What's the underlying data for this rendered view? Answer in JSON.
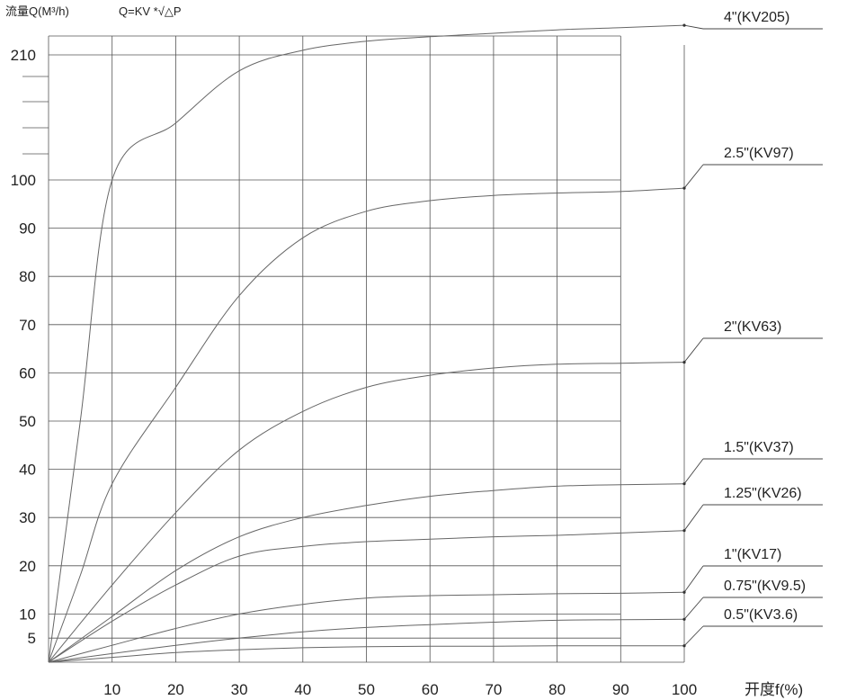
{
  "chart_data": {
    "type": "line",
    "title": "",
    "ylabel": "流量Q(M³/h)",
    "formula": "Q=KV *√△P",
    "xlabel": "开度f(%)",
    "x_ticks": [
      10,
      20,
      30,
      40,
      50,
      60,
      70,
      80,
      90,
      100
    ],
    "y_ticks": [
      5,
      10,
      20,
      30,
      40,
      50,
      60,
      70,
      80,
      90,
      100,
      210
    ],
    "xlim": [
      0,
      100
    ],
    "grid": true,
    "legend": "right, callout labels",
    "series": [
      {
        "name": "4\"(KV205)",
        "x": [
          0,
          5,
          10,
          20,
          30,
          40,
          50,
          60,
          70,
          80,
          90,
          100
        ],
        "y": [
          0,
          50,
          100,
          150,
          196,
          214,
          222,
          226,
          229,
          232,
          234,
          236
        ]
      },
      {
        "name": "2.5\"(KV97)",
        "x": [
          0,
          5,
          10,
          20,
          30,
          40,
          50,
          60,
          70,
          80,
          90,
          100
        ],
        "y": [
          0,
          18,
          37,
          57,
          76,
          88,
          93.5,
          95.7,
          96.8,
          97.3,
          97.6,
          98.3
        ]
      },
      {
        "name": "2\"(KV63)",
        "x": [
          0,
          10,
          20,
          30,
          40,
          50,
          60,
          70,
          80,
          90,
          100
        ],
        "y": [
          0,
          16,
          31,
          44,
          52,
          57,
          59.5,
          61,
          61.8,
          62,
          62.2
        ]
      },
      {
        "name": "1.5\"(KV37)",
        "x": [
          0,
          10,
          20,
          30,
          40,
          50,
          60,
          70,
          80,
          90,
          100
        ],
        "y": [
          0,
          9.5,
          19,
          26,
          30,
          32.5,
          34.4,
          35.6,
          36.5,
          36.8,
          37
        ]
      },
      {
        "name": "1.25\"(KV26)",
        "x": [
          0,
          10,
          20,
          30,
          40,
          50,
          60,
          70,
          80,
          90,
          100
        ],
        "y": [
          0,
          8.5,
          16,
          22,
          24,
          25,
          25.5,
          26,
          26.3,
          26.8,
          27.3
        ]
      },
      {
        "name": "1\"(KV17)",
        "x": [
          0,
          10,
          20,
          30,
          40,
          50,
          60,
          70,
          80,
          90,
          100
        ],
        "y": [
          0,
          3.5,
          7,
          10,
          12,
          13.3,
          13.8,
          14,
          14.2,
          14.3,
          14.5
        ]
      },
      {
        "name": "0.75\"(KV9.5)",
        "x": [
          0,
          10,
          20,
          30,
          40,
          50,
          60,
          70,
          80,
          90,
          100
        ],
        "y": [
          0,
          1.8,
          3.5,
          5,
          6.3,
          7.2,
          7.8,
          8.3,
          8.7,
          8.8,
          8.9
        ]
      },
      {
        "name": "0.5\"(KV3.6)",
        "x": [
          0,
          10,
          20,
          30,
          40,
          50,
          60,
          70,
          80,
          90,
          100
        ],
        "y": [
          0,
          1,
          2,
          2.6,
          3,
          3.2,
          3.3,
          3.3,
          3.4,
          3.4,
          3.4
        ]
      }
    ]
  }
}
